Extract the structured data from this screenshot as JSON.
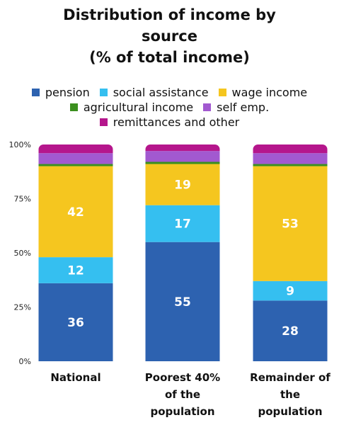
{
  "chart_data": {
    "type": "bar",
    "stacked": true,
    "title": [
      "Distribution of income by",
      "source",
      "(% of total income)"
    ],
    "categories": [
      [
        "National"
      ],
      [
        "Poorest 40%",
        "of the",
        "population"
      ],
      [
        "Remainder of",
        "the",
        "population"
      ]
    ],
    "series": [
      {
        "name": "pension",
        "color": "#2d62b0",
        "values": [
          36,
          55,
          28
        ],
        "labels": [
          "36",
          "55",
          "28"
        ]
      },
      {
        "name": "social assistance",
        "color": "#35bff0",
        "values": [
          12,
          17,
          9
        ],
        "labels": [
          "12",
          "17",
          "9"
        ]
      },
      {
        "name": "wage income",
        "color": "#f5c61f",
        "values": [
          42,
          19,
          53
        ],
        "labels": [
          "42",
          "19",
          "53"
        ]
      },
      {
        "name": "agricultural income",
        "color": "#3b8f1e",
        "values": [
          1,
          1,
          1
        ],
        "labels": [
          "",
          "",
          ""
        ]
      },
      {
        "name": "self emp.",
        "color": "#a259d0",
        "values": [
          5,
          5,
          5
        ],
        "labels": [
          "",
          "",
          ""
        ]
      },
      {
        "name": "remittances and other",
        "color": "#b5168c",
        "values": [
          4,
          3,
          4
        ],
        "labels": [
          "",
          "",
          ""
        ]
      }
    ],
    "legend_rows": [
      [
        0,
        1,
        2
      ],
      [
        3,
        4
      ],
      [
        5
      ]
    ],
    "legend_position": "top",
    "ylim": [
      0,
      100
    ],
    "yticks": [
      {
        "value": 0,
        "label": "0%"
      },
      {
        "value": 25,
        "label": "25%"
      },
      {
        "value": 50,
        "label": "50%"
      },
      {
        "value": 75,
        "label": "75%"
      },
      {
        "value": 100,
        "label": "100%"
      }
    ],
    "grid": false
  }
}
